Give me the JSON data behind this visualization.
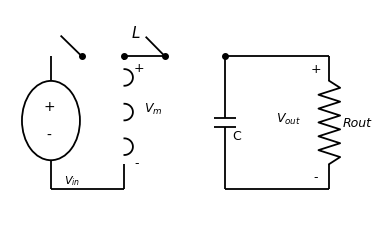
{
  "bg_color": "#ffffff",
  "line_color": "#000000",
  "label_L": "$L$",
  "label_Vin": "$V_{in}$",
  "label_Vm": "$V_{m}$",
  "label_C": "C",
  "label_Vout": "$V_{out}$",
  "label_Rout": "Rout",
  "figsize": [
    3.88,
    2.28
  ],
  "dpi": 100,
  "xlim": [
    0,
    10
  ],
  "ylim": [
    0,
    6
  ]
}
